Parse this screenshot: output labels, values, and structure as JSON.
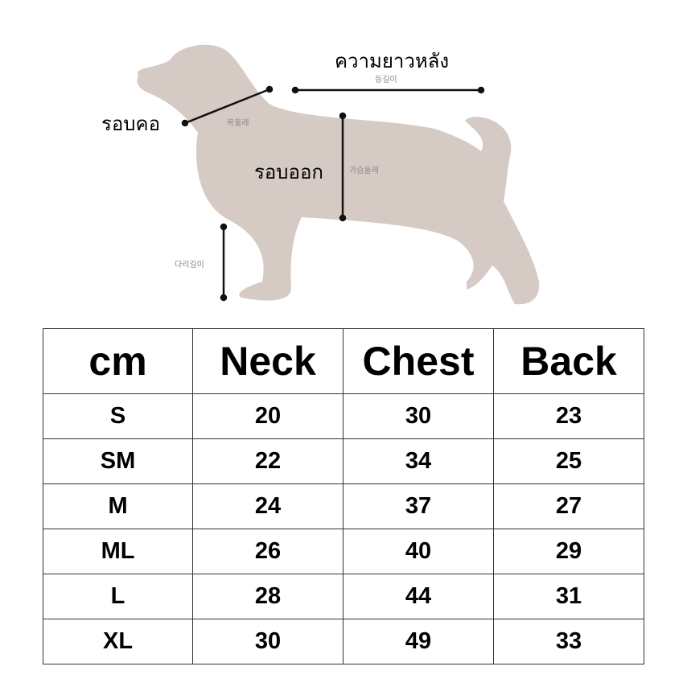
{
  "diagram": {
    "silhouette_color": "#d6cbc4",
    "labels": {
      "back_length_thai": "ความยาวหลัง",
      "back_length_korean": "등길이",
      "neck_thai": "รอบคอ",
      "neck_korean": "목둘레",
      "chest_thai": "รอบออก",
      "chest_korean": "가슴둘레",
      "leg_length_korean": "다리길이"
    }
  },
  "table": {
    "headers": [
      "cm",
      "Neck",
      "Chest",
      "Back"
    ],
    "rows": [
      [
        "S",
        "20",
        "30",
        "23"
      ],
      [
        "SM",
        "22",
        "34",
        "25"
      ],
      [
        "M",
        "24",
        "37",
        "27"
      ],
      [
        "ML",
        "26",
        "40",
        "29"
      ],
      [
        "L",
        "28",
        "44",
        "31"
      ],
      [
        "XL",
        "30",
        "49",
        "33"
      ]
    ]
  }
}
